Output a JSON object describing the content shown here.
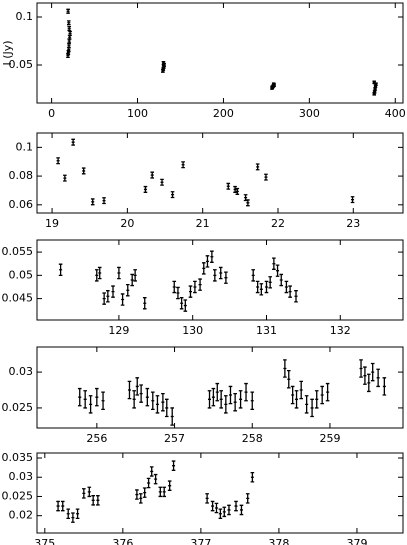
{
  "chart_data": [
    {
      "type": "scatter",
      "ylabel": "I (Jy)",
      "x": [
        19,
        19.5,
        20,
        20.2,
        20.5,
        21,
        21.5,
        20.5,
        20,
        19.2,
        129.5,
        130,
        130.5,
        131,
        130.2,
        256.5,
        257,
        258,
        259,
        258.5,
        375.5,
        376,
        376.5,
        377,
        377.5,
        375.5
      ],
      "values": [
        0.06,
        0.063,
        0.066,
        0.07,
        0.075,
        0.079,
        0.083,
        0.088,
        0.094,
        0.106,
        0.044,
        0.046,
        0.048,
        0.05,
        0.052,
        0.026,
        0.027,
        0.028,
        0.029,
        0.03,
        0.02,
        0.022,
        0.025,
        0.028,
        0.03,
        0.032
      ],
      "errors": [
        0.002,
        0.002,
        0.002,
        0.002,
        0.002,
        0.002,
        0.002,
        0.002,
        0.002,
        0.002,
        0.0015,
        0.0015,
        0.0015,
        0.0015,
        0.0015,
        0.0012,
        0.0012,
        0.0012,
        0.0012,
        0.0012,
        0.0012,
        0.0012,
        0.0012,
        0.0012,
        0.0012,
        0.0012
      ],
      "xlim": [
        -17,
        409
      ],
      "ylim": [
        0.0104,
        0.1146
      ],
      "xticks": [
        0,
        100,
        200,
        300,
        400
      ],
      "yticks": [
        0.05,
        0.1
      ]
    },
    {
      "type": "scatter",
      "x": [
        19.08,
        19.17,
        19.28,
        19.42,
        19.54,
        19.69,
        20.24,
        20.33,
        20.46,
        20.6,
        20.74,
        21.34,
        21.43,
        21.46,
        21.57,
        21.6,
        21.73,
        21.84,
        22.99
      ],
      "values": [
        0.0907,
        0.0786,
        0.1036,
        0.0836,
        0.0621,
        0.0629,
        0.0707,
        0.0807,
        0.0757,
        0.0671,
        0.0879,
        0.0729,
        0.0707,
        0.0693,
        0.065,
        0.0614,
        0.0864,
        0.0793,
        0.0636
      ],
      "errors": [
        0.002,
        0.002,
        0.002,
        0.002,
        0.002,
        0.002,
        0.002,
        0.002,
        0.002,
        0.002,
        0.002,
        0.002,
        0.002,
        0.002,
        0.002,
        0.002,
        0.002,
        0.002,
        0.002
      ],
      "xlim": [
        18.8,
        23.66
      ],
      "ylim": [
        0.0543,
        0.11
      ],
      "xticks": [
        19,
        20,
        21,
        22,
        23
      ],
      "yticks": [
        0.06,
        0.08,
        0.1
      ]
    },
    {
      "type": "scatter",
      "x": [
        128.21,
        128.7,
        128.74,
        128.8,
        128.85,
        128.92,
        129.0,
        129.05,
        129.12,
        129.18,
        129.22,
        129.35,
        129.75,
        129.8,
        129.85,
        129.9,
        129.97,
        130.03,
        130.1,
        130.15,
        130.2,
        130.26,
        130.3,
        130.38,
        130.45,
        130.82,
        130.88,
        130.93,
        131.0,
        131.05,
        131.1,
        131.15,
        131.2,
        131.27,
        131.32,
        131.4
      ],
      "values": [
        0.0512,
        0.05,
        0.0505,
        0.045,
        0.0455,
        0.0465,
        0.0505,
        0.0448,
        0.0468,
        0.049,
        0.05,
        0.044,
        0.0475,
        0.0462,
        0.044,
        0.0435,
        0.0465,
        0.0475,
        0.048,
        0.0515,
        0.053,
        0.054,
        0.05,
        0.0505,
        0.0495,
        0.05,
        0.0475,
        0.047,
        0.0475,
        0.0485,
        0.0525,
        0.051,
        0.049,
        0.0475,
        0.0465,
        0.0455
      ],
      "errors": [
        0.0012,
        0.0012,
        0.0012,
        0.0012,
        0.0012,
        0.0012,
        0.0012,
        0.0012,
        0.0012,
        0.0012,
        0.0012,
        0.0012,
        0.0012,
        0.0012,
        0.0012,
        0.0012,
        0.0012,
        0.0012,
        0.0012,
        0.0012,
        0.0012,
        0.0012,
        0.0012,
        0.0012,
        0.0012,
        0.0012,
        0.0012,
        0.0012,
        0.0012,
        0.0012,
        0.0012,
        0.0012,
        0.0012,
        0.0012,
        0.0012,
        0.0012
      ],
      "xlim": [
        127.89,
        132.85
      ],
      "ylim": [
        0.0404,
        0.0576
      ],
      "xticks": [
        129,
        130,
        131,
        132
      ],
      "yticks": [
        0.045,
        0.05,
        0.055
      ]
    },
    {
      "type": "scatter",
      "x": [
        255.78,
        255.85,
        255.92,
        256.0,
        256.08,
        256.42,
        256.48,
        256.52,
        256.57,
        256.65,
        256.72,
        256.78,
        256.85,
        256.9,
        256.97,
        257.45,
        257.5,
        257.55,
        257.6,
        257.66,
        257.72,
        257.78,
        257.85,
        257.92,
        258.0,
        258.42,
        258.47,
        258.52,
        258.57,
        258.63,
        258.7,
        258.77,
        258.83,
        258.9,
        258.97,
        259.4,
        259.45,
        259.5,
        259.55,
        259.62,
        259.7
      ],
      "values": [
        0.0265,
        0.0262,
        0.0255,
        0.0265,
        0.026,
        0.0275,
        0.0262,
        0.028,
        0.027,
        0.0265,
        0.026,
        0.0255,
        0.0258,
        0.025,
        0.0238,
        0.0262,
        0.0265,
        0.0272,
        0.0262,
        0.0255,
        0.0268,
        0.0258,
        0.0262,
        0.0272,
        0.026,
        0.0305,
        0.029,
        0.0268,
        0.0262,
        0.0275,
        0.0255,
        0.025,
        0.0262,
        0.0268,
        0.0272,
        0.0305,
        0.0295,
        0.0285,
        0.03,
        0.0292,
        0.028
      ],
      "errors": [
        0.0012,
        0.0012,
        0.0012,
        0.0012,
        0.0012,
        0.0012,
        0.0012,
        0.0012,
        0.0012,
        0.0012,
        0.0012,
        0.0012,
        0.0012,
        0.0012,
        0.0012,
        0.0012,
        0.0012,
        0.0012,
        0.0012,
        0.0012,
        0.0012,
        0.0012,
        0.0012,
        0.0012,
        0.0012,
        0.0012,
        0.0012,
        0.0012,
        0.0012,
        0.0012,
        0.0012,
        0.0012,
        0.0012,
        0.0012,
        0.0012,
        0.0012,
        0.0012,
        0.0012,
        0.0012,
        0.0012,
        0.0012
      ],
      "xlim": [
        255.23,
        259.94
      ],
      "ylim": [
        0.0222,
        0.0335
      ],
      "xticks": [
        256,
        257,
        258,
        259
      ],
      "yticks": [
        0.025,
        0.03
      ]
    },
    {
      "type": "scatter",
      "x": [
        375.17,
        375.23,
        375.3,
        375.36,
        375.42,
        375.5,
        375.57,
        375.62,
        375.68,
        376.18,
        376.23,
        376.28,
        376.33,
        376.37,
        376.42,
        376.48,
        376.53,
        376.6,
        376.65,
        377.08,
        377.15,
        377.2,
        377.25,
        377.3,
        377.36,
        377.45,
        377.52,
        377.6,
        377.66
      ],
      "values": [
        0.0225,
        0.0225,
        0.0205,
        0.0195,
        0.0205,
        0.0258,
        0.0262,
        0.024,
        0.024,
        0.0255,
        0.0245,
        0.026,
        0.0285,
        0.0315,
        0.0295,
        0.0262,
        0.0262,
        0.0278,
        0.033,
        0.0245,
        0.0225,
        0.022,
        0.0205,
        0.021,
        0.0215,
        0.0225,
        0.0215,
        0.0245,
        0.03
      ],
      "errors": [
        0.0012,
        0.0012,
        0.0012,
        0.0012,
        0.0012,
        0.0012,
        0.0012,
        0.0012,
        0.0012,
        0.0012,
        0.0012,
        0.0012,
        0.0012,
        0.0012,
        0.0012,
        0.0012,
        0.0012,
        0.0012,
        0.0012,
        0.0012,
        0.0012,
        0.0012,
        0.0012,
        0.0012,
        0.0012,
        0.0012,
        0.0012,
        0.0012,
        0.0012
      ],
      "xlim": [
        374.9,
        379.59
      ],
      "ylim": [
        0.0155,
        0.0363
      ],
      "xticks": [
        375,
        376,
        377,
        378,
        379
      ],
      "yticks": [
        0.02,
        0.025,
        0.03,
        0.035
      ]
    }
  ]
}
